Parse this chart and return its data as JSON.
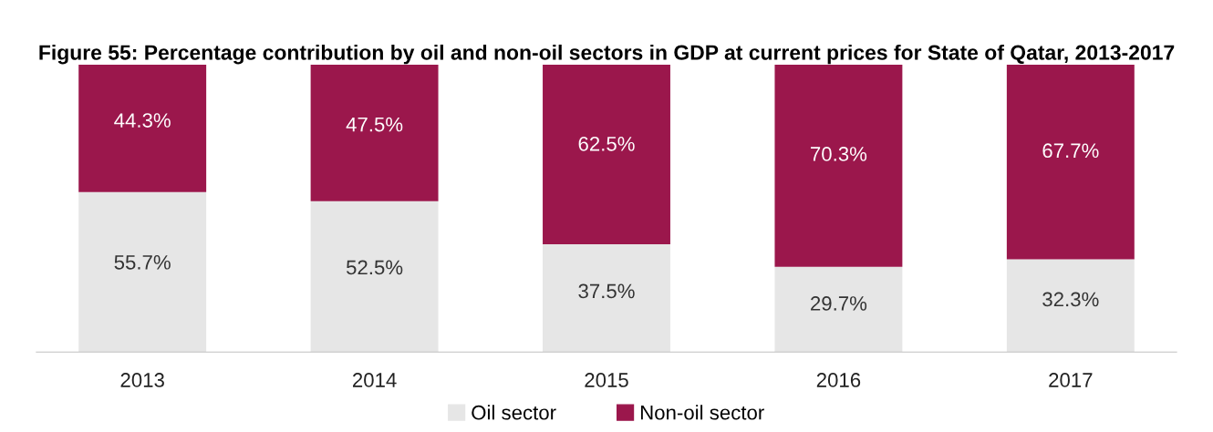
{
  "chart_data": {
    "type": "bar",
    "stacked": true,
    "title": "Figure 55: Percentage contribution by oil and non-oil sectors in GDP at current prices for State of Qatar, 2013-2017",
    "categories": [
      "2013",
      "2014",
      "2015",
      "2016",
      "2017"
    ],
    "series": [
      {
        "name": "Oil sector",
        "color": "#e6e6e6",
        "values": [
          55.7,
          52.5,
          37.5,
          29.7,
          32.3
        ],
        "value_labels": [
          "55.7%",
          "52.5%",
          "37.5%",
          "29.7%",
          "32.3%"
        ]
      },
      {
        "name": "Non-oil sector",
        "color": "#9b174c",
        "values": [
          44.3,
          47.5,
          62.5,
          70.3,
          67.7
        ],
        "value_labels": [
          "44.3%",
          "47.5%",
          "62.5%",
          "70.3%",
          "67.7%"
        ]
      }
    ],
    "legend": "bottom",
    "grid": false
  }
}
